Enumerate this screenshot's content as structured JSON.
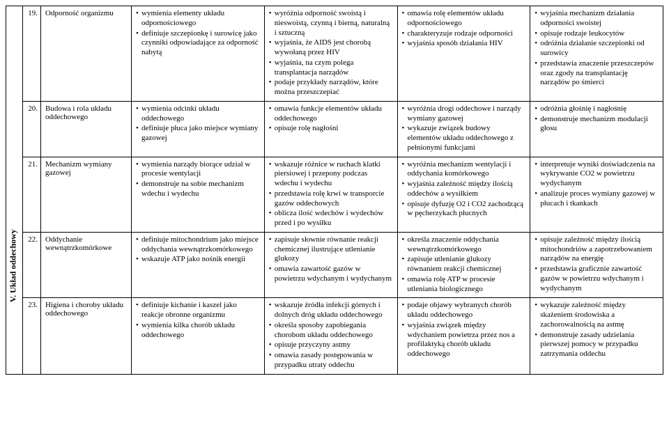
{
  "section_label": "V. Układ oddechowy",
  "rows": [
    {
      "num": "19.",
      "topic": "Odporność organizmu",
      "c1": [
        "wymienia elementy układu odpornościowego",
        "definiuje szczepionkę i surowicę jako czynniki odpowiadające za odporność nabytą"
      ],
      "c2": [
        "wyróżnia odporność swoistą i nieswoistą, czynną i bierną, naturalną i sztuczną",
        "wyjaśnia, że AIDS jest chorobą wywołaną przez HIV",
        "wyjaśnia, na czym polega transplantacja narządów",
        "podaje przykłady narządów, które można przeszczepiać"
      ],
      "c3": [
        "omawia rolę elementów układu odpornościowego",
        "charakteryzuje rodzaje odporności",
        "wyjaśnia sposób działania HIV"
      ],
      "c4": [
        "wyjaśnia mechanizm działania odporności swoistej",
        "opisuje rodzaje leukocytów",
        "odróżnia działanie szczepionki od surowicy",
        "przedstawia znaczenie przeszczepów oraz zgody na transplantację narządów po śmierci"
      ]
    },
    {
      "num": "20.",
      "topic": "Budowa i rola układu oddechowego",
      "c1": [
        "wymienia odcinki układu oddechowego",
        "definiuje płuca jako miejsce wymiany gazowej"
      ],
      "c2": [
        "omawia funkcje elementów układu oddechowego",
        "opisuje rolę nagłośni"
      ],
      "c3": [
        "wyróżnia drogi oddechowe i narządy wymiany gazowej",
        "wykazuje związek budowy elementów układu oddechowego z pełnionymi funkcjami"
      ],
      "c4": [
        "odróżnia głośnię i nagłośnię",
        "demonstruje mechanizm modulacji głosu"
      ]
    },
    {
      "num": "21.",
      "topic": "Mechanizm wymiany gazowej",
      "c1": [
        "wymienia narządy biorące udział w procesie wentylacji",
        "demonstruje na sobie mechanizm wdechu i wydechu"
      ],
      "c2": [
        "wskazuje różnice w ruchach klatki piersiowej i przepony podczas wdechu i wydechu",
        "przedstawia rolę krwi w transporcie gazów oddechowych",
        "oblicza ilość wdechów i wydechów przed i po wysiłku"
      ],
      "c3": [
        "wyróżnia mechanizm wentylacji i oddychania komórkowego",
        "wyjaśnia zależność między ilością oddechów a wysiłkiem",
        "opisuje dyfuzję O2 i CO2 zachodzącą w pęcherzykach płucnych"
      ],
      "c4": [
        "interpretuje wyniki doświadczenia na wykrywanie CO2 w powietrzu wydychanym",
        "analizuje proces wymiany gazowej w płucach i tkankach"
      ]
    },
    {
      "num": "22.",
      "topic": "Oddychanie wewnątrzkomórkowe",
      "c1": [
        "definiuje mitochondrium jako miejsce oddychania wewnątrzkomórkowego",
        "wskazuje ATP jako nośnik energii"
      ],
      "c2": [
        "zapisuje słownie równanie reakcji chemicznej ilustrujące utlenianie glukozy",
        "omawia zawartość gazów w powietrzu wdychanym i wydychanym"
      ],
      "c3": [
        "określa znaczenie oddychania wewnątrzkomórkowego",
        "zapisuje utlenianie glukozy równaniem reakcji chemicznej",
        "omawia rolę ATP w procesie utleniania biologicznego"
      ],
      "c4": [
        "opisuje zależność między ilością mitochondriów a zapotrzebowaniem narządów na energię",
        "przedstawia graficznie zawartość gazów w powietrzu wdychanym i wydychanym"
      ]
    },
    {
      "num": "23.",
      "topic": "Higiena i choroby układu oddechowego",
      "c1": [
        "definiuje kichanie i kaszel jako reakcje obronne organizmu",
        "wymienia kilka chorób układu oddechowego"
      ],
      "c2": [
        "wskazuje źródła infekcji górnych i dolnych dróg układu oddechowego",
        "określa sposoby zapobiegania chorobom układu oddechowego",
        "opisuje przyczyny astmy",
        "omawia zasady postępowania w przypadku utraty oddechu"
      ],
      "c3": [
        "podaje objawy wybranych chorób układu oddechowego",
        "wyjaśnia związek między wdychaniem powietrza przez nos a profilaktyką chorób układu oddechowego"
      ],
      "c4": [
        "wykazuje zależność między skażeniem środowiska a zachorowalnością na astmę",
        "demonstruje zasady udzielania pierwszej pomocy w przypadku zatrzymania oddechu"
      ]
    }
  ]
}
